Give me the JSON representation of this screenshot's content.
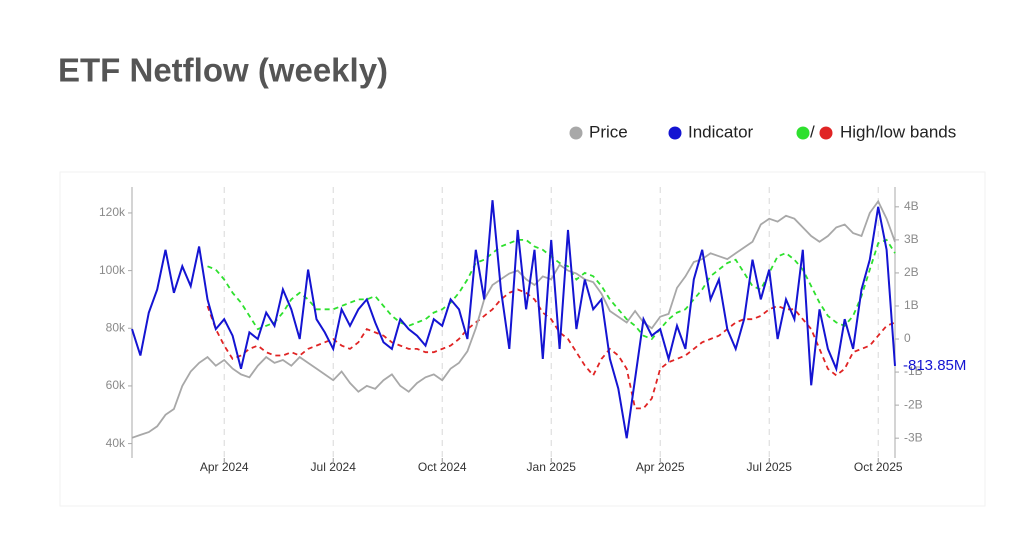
{
  "chart_data": {
    "type": "line",
    "title": "ETF Netflow (weekly)",
    "categories": [
      null,
      null,
      null,
      null,
      null,
      null,
      null,
      null,
      null,
      null,
      null,
      "Apr 2024",
      null,
      null,
      null,
      null,
      null,
      null,
      null,
      null,
      null,
      null,
      null,
      null,
      "Jul 2024",
      null,
      null,
      null,
      null,
      null,
      null,
      null,
      null,
      null,
      null,
      null,
      null,
      "Oct 2024",
      null,
      null,
      null,
      null,
      null,
      null,
      null,
      null,
      null,
      null,
      null,
      null,
      "Jan 2025",
      null,
      null,
      null,
      null,
      null,
      null,
      null,
      null,
      null,
      null,
      null,
      null,
      "Apr 2025",
      null,
      null,
      null,
      null,
      null,
      null,
      null,
      null,
      null,
      null,
      null,
      null,
      "Jul 2025",
      null,
      null,
      null,
      null,
      null,
      null,
      null,
      null,
      null,
      null,
      null,
      null,
      "Oct 2025",
      null,
      null
    ],
    "series": [
      {
        "name": "Price",
        "color": "#a8a8a8",
        "axis": "y",
        "values": [
          42000,
          43000,
          44000,
          46000,
          50000,
          52000,
          60000,
          65000,
          68000,
          70000,
          67000,
          69000,
          66000,
          64000,
          63000,
          67000,
          70000,
          68000,
          69000,
          67000,
          70000,
          68000,
          66000,
          64000,
          62000,
          65000,
          61000,
          58000,
          60000,
          59000,
          62000,
          64000,
          60000,
          58000,
          61000,
          63000,
          64000,
          62000,
          66000,
          68000,
          72000,
          80000,
          90000,
          95000,
          97000,
          99000,
          100000,
          97000,
          95000,
          98000,
          97000,
          102000,
          100000,
          99000,
          97000,
          96000,
          92000,
          86000,
          84000,
          82000,
          86000,
          82000,
          80000,
          84000,
          85000,
          94000,
          98000,
          103000,
          104000,
          106000,
          105000,
          104000,
          106000,
          108000,
          110000,
          116000,
          118000,
          117000,
          119000,
          118000,
          115000,
          112000,
          110000,
          112000,
          115000,
          116000,
          113000,
          112000,
          120000,
          124000,
          118000,
          110000
        ]
      },
      {
        "name": "Indicator",
        "color": "#1414d2",
        "axis": "y2",
        "last_value_label": "-813.85M",
        "values": [
          0.3,
          -0.5,
          0.8,
          1.5,
          2.7,
          1.4,
          2.2,
          1.6,
          2.8,
          1.2,
          0.3,
          0.6,
          0.1,
          -0.9,
          0.2,
          0,
          0.8,
          0.4,
          1.5,
          0.9,
          0,
          2.1,
          0.6,
          0.2,
          -0.3,
          0.9,
          0.4,
          0.9,
          1.2,
          0.5,
          -0.1,
          -0.3,
          0.6,
          0.3,
          0.1,
          -0.2,
          0.6,
          0.4,
          1.2,
          0.9,
          0,
          2.7,
          1.2,
          4.2,
          1.5,
          -0.3,
          3.3,
          0.9,
          2.7,
          -0.6,
          3.0,
          -0.3,
          3.3,
          0.3,
          1.8,
          0.9,
          1.2,
          -0.6,
          -1.5,
          -3.0,
          -1.2,
          0.6,
          0.1,
          0.3,
          -0.6,
          0.4,
          -0.3,
          1.8,
          2.7,
          1.2,
          1.8,
          0.3,
          -0.3,
          0.6,
          2.4,
          1.2,
          2.1,
          0,
          1.2,
          0.6,
          2.7,
          -1.4,
          0.9,
          -0.3,
          -0.9,
          0.6,
          -0.3,
          1.5,
          2.4,
          4.0,
          2.7,
          -0.81385
        ]
      }
    ],
    "bands": {
      "name": "High/low bands",
      "separator": "/",
      "axis": "y2",
      "dashed": true,
      "high": {
        "color": "#2ee02e",
        "values": [
          null,
          null,
          null,
          null,
          null,
          null,
          null,
          null,
          null,
          2.2,
          2.1,
          1.8,
          1.4,
          1.1,
          0.7,
          0.3,
          0.4,
          0.5,
          0.8,
          1.2,
          1.4,
          1.2,
          0.9,
          0.9,
          0.9,
          1.0,
          1.1,
          1.2,
          1.2,
          1.3,
          1.0,
          0.7,
          0.5,
          0.4,
          0.5,
          0.6,
          0.8,
          0.9,
          1.1,
          1.4,
          1.8,
          2.3,
          2.4,
          2.6,
          2.8,
          2.9,
          3.0,
          3.0,
          2.8,
          2.7,
          2.5,
          2.3,
          2.2,
          1.8,
          2.0,
          1.9,
          1.6,
          1.2,
          0.9,
          0.6,
          0.4,
          0.1,
          0.0,
          0.3,
          0.6,
          0.8,
          0.9,
          1.2,
          1.5,
          1.9,
          2.1,
          2.3,
          2.4,
          2.0,
          1.6,
          1.5,
          2.0,
          2.5,
          2.6,
          2.4,
          2.1,
          1.6,
          1.1,
          0.7,
          0.5,
          0.4,
          0.7,
          1.3,
          2.1,
          2.9,
          3.0,
          2.6
        ]
      },
      "low": {
        "color": "#e02424",
        "values": [
          null,
          null,
          null,
          null,
          null,
          null,
          null,
          null,
          null,
          1.0,
          0.3,
          -0.2,
          -0.6,
          -0.5,
          -0.3,
          -0.2,
          -0.4,
          -0.5,
          -0.5,
          -0.4,
          -0.5,
          -0.3,
          -0.2,
          -0.1,
          0,
          -0.2,
          -0.3,
          -0.1,
          0.3,
          0.2,
          0.1,
          -0.1,
          -0.2,
          -0.3,
          -0.3,
          -0.4,
          -0.4,
          -0.3,
          -0.2,
          0,
          0.3,
          0.5,
          0.7,
          0.9,
          1.2,
          1.4,
          1.5,
          1.4,
          1.2,
          0.8,
          0.6,
          0.2,
          0,
          -0.4,
          -0.8,
          -1.1,
          -0.6,
          -0.3,
          -0.5,
          -0.9,
          -2.1,
          -2.1,
          -1.8,
          -0.9,
          -0.7,
          -0.6,
          -0.5,
          -0.3,
          -0.1,
          0,
          0.1,
          0.3,
          0.5,
          0.6,
          0.6,
          0.7,
          0.9,
          1.0,
          0.9,
          0.9,
          0.6,
          0.3,
          -0.3,
          -0.9,
          -1.1,
          -0.9,
          -0.4,
          -0.3,
          -0.2,
          0.1,
          0.4,
          0.5
        ]
      }
    },
    "ylim": [
      35000,
      129000
    ],
    "yticks": [
      {
        "value": 40000,
        "label": "40k"
      },
      {
        "value": 60000,
        "label": "60k"
      },
      {
        "value": 80000,
        "label": "80k"
      },
      {
        "value": 100000,
        "label": "100k"
      },
      {
        "value": 120000,
        "label": "120k"
      }
    ],
    "y2lim": [
      -3.6,
      4.6
    ],
    "y2ticks": [
      {
        "value": -3,
        "label": "-3B"
      },
      {
        "value": -2,
        "label": "-2B"
      },
      {
        "value": -1,
        "label": "-1B"
      },
      0,
      {
        "value": 1,
        "label": "1B"
      },
      {
        "value": 2,
        "label": "2B"
      },
      {
        "value": 3,
        "label": "3B"
      },
      {
        "value": 4,
        "label": "4B"
      }
    ],
    "x_grid": true
  }
}
